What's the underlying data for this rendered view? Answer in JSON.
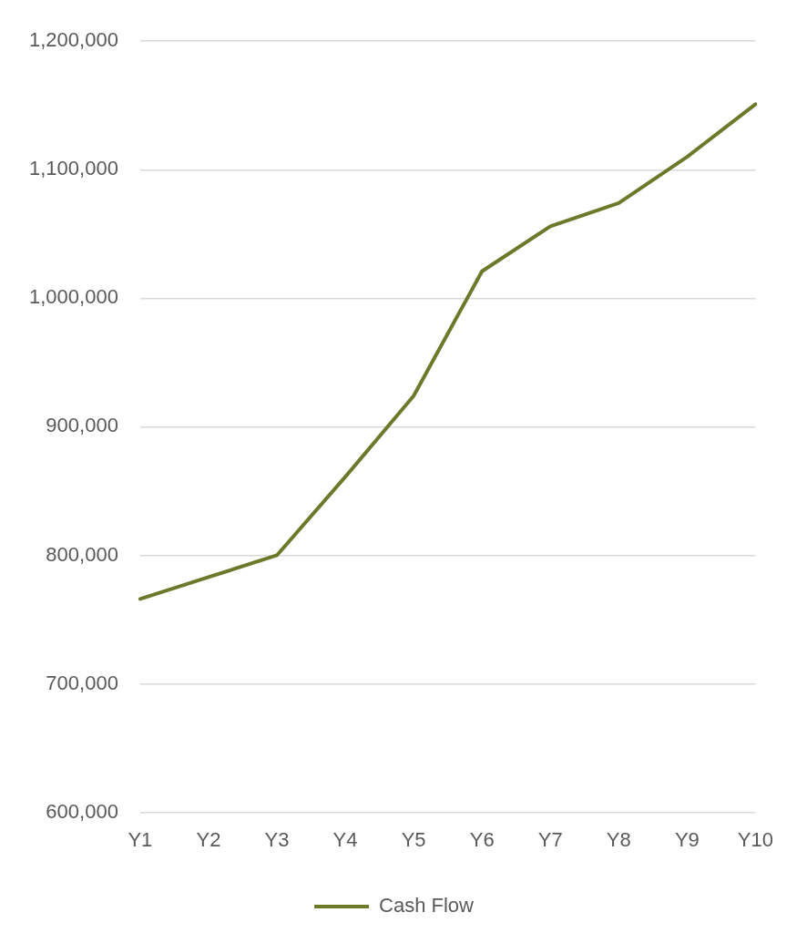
{
  "chart_data": {
    "type": "line",
    "categories": [
      "Y1",
      "Y2",
      "Y3",
      "Y4",
      "Y5",
      "Y6",
      "Y7",
      "Y8",
      "Y9",
      "Y10"
    ],
    "series": [
      {
        "name": "Cash Flow",
        "color": "#6b7a2a",
        "values": [
          766000,
          783000,
          800000,
          861000,
          924000,
          1021000,
          1056000,
          1074000,
          1110000,
          1151000
        ]
      }
    ],
    "ylim": [
      600000,
      1200000
    ],
    "yticks": [
      {
        "value": 600000,
        "label": "600,000"
      },
      {
        "value": 700000,
        "label": "700,000"
      },
      {
        "value": 800000,
        "label": "800,000"
      },
      {
        "value": 900000,
        "label": "900,000"
      },
      {
        "value": 1000000,
        "label": "1,000,000"
      },
      {
        "value": 1100000,
        "label": "1,100,000"
      },
      {
        "value": 1200000,
        "label": "1,200,000"
      }
    ],
    "grid": "y",
    "legend": "bottom",
    "marker": "none",
    "line_style": "solid"
  }
}
